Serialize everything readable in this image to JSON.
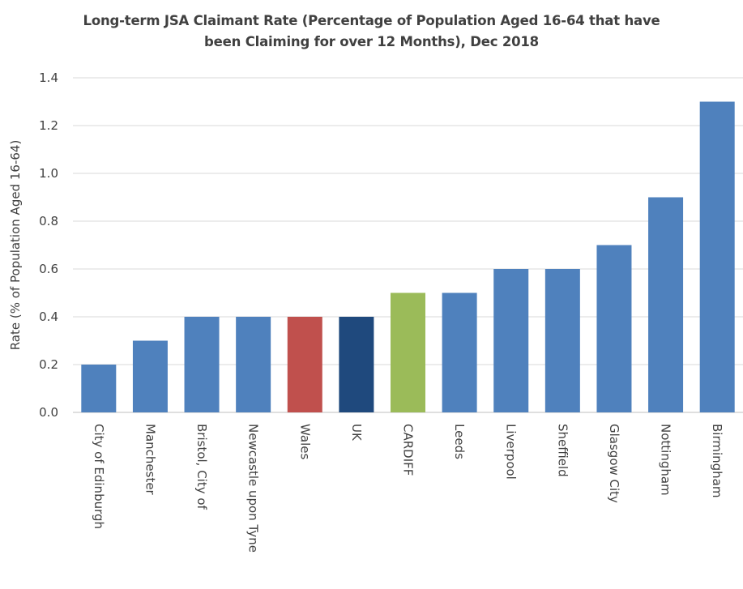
{
  "chart_data": {
    "type": "bar",
    "title_line1": "Long-term JSA Claimant Rate (Percentage of Population Aged 16-64 that have",
    "title_line2": "been Claiming for over 12 Months), Dec 2018",
    "ylabel": "Rate (% of Population Aged 16-64)",
    "xlabel": "",
    "ylim": [
      0,
      1.4
    ],
    "yticks": [
      0.0,
      0.2,
      0.4,
      0.6,
      0.8,
      1.0,
      1.2,
      1.4
    ],
    "grid": true,
    "legend": "none",
    "categories": [
      "City of Edinburgh",
      "Manchester",
      "Bristol, City of",
      "Newcastle upon Tyne",
      "Wales",
      "UK",
      "CARDIFF",
      "Leeds",
      "Liverpool",
      "Sheffield",
      "Glasgow City",
      "Nottingham",
      "Birmingham"
    ],
    "values": [
      0.2,
      0.3,
      0.4,
      0.4,
      0.4,
      0.4,
      0.5,
      0.5,
      0.6,
      0.6,
      0.7,
      0.9,
      1.3
    ],
    "colors": [
      "#4f81bd",
      "#4f81bd",
      "#4f81bd",
      "#4f81bd",
      "#c0504d",
      "#1f497d",
      "#9bbb59",
      "#4f81bd",
      "#4f81bd",
      "#4f81bd",
      "#4f81bd",
      "#4f81bd",
      "#4f81bd"
    ]
  }
}
